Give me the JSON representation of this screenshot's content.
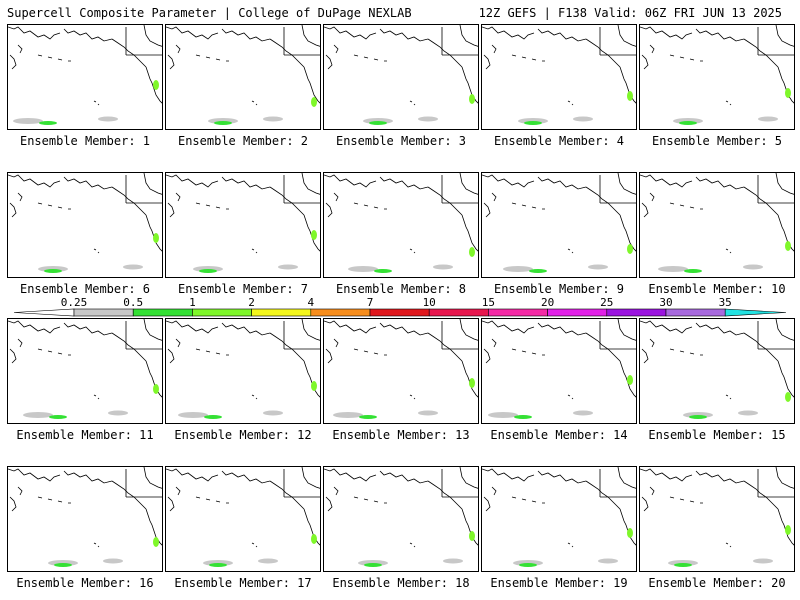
{
  "header": {
    "left": "Supercell Composite Parameter | College of DuPage NEXLAB",
    "right": "12Z GEFS | F138 Valid: 06Z FRI JUN 13 2025"
  },
  "panels": [
    {
      "label": "Ensemble Member: 1"
    },
    {
      "label": "Ensemble Member: 2"
    },
    {
      "label": "Ensemble Member: 3"
    },
    {
      "label": "Ensemble Member: 4"
    },
    {
      "label": "Ensemble Member: 5"
    },
    {
      "label": "Ensemble Member: 6"
    },
    {
      "label": "Ensemble Member: 7"
    },
    {
      "label": "Ensemble Member: 8"
    },
    {
      "label": "Ensemble Member: 9"
    },
    {
      "label": "Ensemble Member: 10"
    },
    {
      "label": "Ensemble Member: 11"
    },
    {
      "label": "Ensemble Member: 12"
    },
    {
      "label": "Ensemble Member: 13"
    },
    {
      "label": "Ensemble Member: 14"
    },
    {
      "label": "Ensemble Member: 15"
    },
    {
      "label": "Ensemble Member: 16"
    },
    {
      "label": "Ensemble Member: 17"
    },
    {
      "label": "Ensemble Member: 18"
    },
    {
      "label": "Ensemble Member: 19"
    },
    {
      "label": "Ensemble Member: 20"
    }
  ],
  "colorbar": {
    "ticks": [
      "0.25",
      "0.5",
      "1",
      "2",
      "4",
      "7",
      "10",
      "15",
      "20",
      "25",
      "30",
      "35"
    ],
    "colors": [
      "#c8c8c8",
      "#34e134",
      "#7ff72a",
      "#f4f71c",
      "#f78d1c",
      "#e0171c",
      "#e8174e",
      "#f52aa6",
      "#e221e8",
      "#9b14e0",
      "#a86adf",
      "#23e2e2"
    ]
  }
}
